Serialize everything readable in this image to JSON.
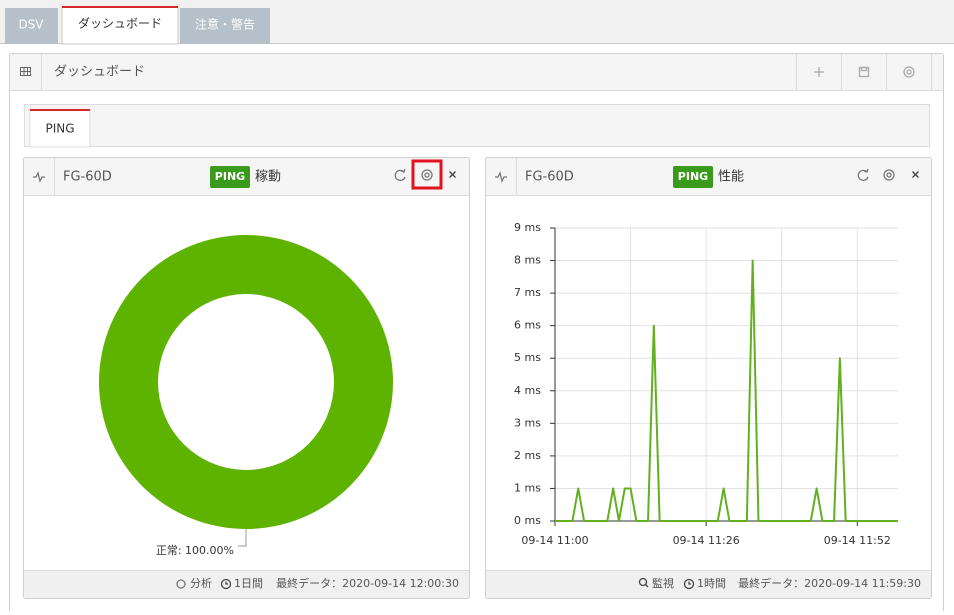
{
  "tabs": [
    "DSV",
    "ダッシュボード",
    "注意・警告"
  ],
  "panel": {
    "title": "ダッシュボード",
    "subtabs": [
      "PING"
    ]
  },
  "widgets": [
    {
      "title": "FG-60D",
      "badge": "PING",
      "label": "稼動",
      "chart_data": {
        "type": "pie",
        "donut": true,
        "values": [
          100
        ],
        "value_labels": [
          "正常: 100.00%"
        ],
        "color": "#5db300"
      },
      "footer": [
        "分析",
        "1日間",
        "最終データ：2020-09-14 12:00:30"
      ]
    },
    {
      "title": "FG-60D",
      "badge": "PING",
      "label": "性能",
      "chart_data": {
        "type": "line",
        "color": "#62b020",
        "x": [
          "09-14 11:00",
          "09-14 11:03",
          "09-14 11:04",
          "09-14 11:05",
          "09-14 11:09",
          "09-14 11:10",
          "09-14 11:11",
          "09-14 11:12",
          "09-14 11:13",
          "09-14 11:14",
          "09-14 11:16",
          "09-14 11:17",
          "09-14 11:18",
          "09-14 11:28",
          "09-14 11:29",
          "09-14 11:30",
          "09-14 11:33",
          "09-14 11:34",
          "09-14 11:35",
          "09-14 11:44",
          "09-14 11:45",
          "09-14 11:46",
          "09-14 11:48",
          "09-14 11:49",
          "09-14 11:50",
          "09-14 11:59"
        ],
        "values": [
          0,
          0,
          1,
          0,
          0,
          1,
          0,
          1,
          1,
          0,
          0,
          6,
          0,
          0,
          1,
          0,
          0,
          8,
          0,
          0,
          1,
          0,
          0,
          5,
          0,
          0
        ],
        "xlim": [
          "09-14 11:00",
          "09-14 11:59"
        ],
        "xticks": [
          "09-14 11:00",
          "09-14 11:26",
          "09-14 11:52"
        ],
        "ylim": [
          0,
          9
        ],
        "yticks": [
          {
            "value": 0,
            "label": "0 ms"
          },
          {
            "value": 1,
            "label": "1 ms"
          },
          {
            "value": 2,
            "label": "2 ms"
          },
          {
            "value": 3,
            "label": "3 ms"
          },
          {
            "value": 4,
            "label": "4 ms"
          },
          {
            "value": 5,
            "label": "5 ms"
          },
          {
            "value": 6,
            "label": "6 ms"
          },
          {
            "value": 7,
            "label": "7 ms"
          },
          {
            "value": 8,
            "label": "8 ms"
          },
          {
            "value": 9,
            "label": "9 ms"
          }
        ],
        "grid": true
      },
      "footer": [
        "監視",
        "1時間",
        "最終データ：2020-09-14 11:59:30"
      ]
    }
  ]
}
